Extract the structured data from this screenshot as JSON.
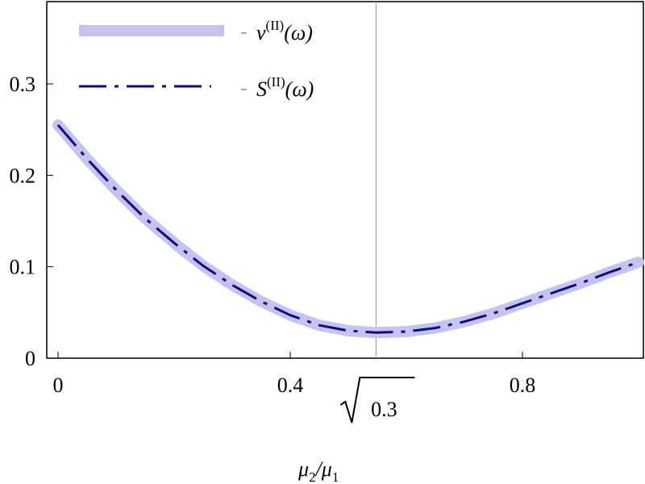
{
  "chart_data": {
    "type": "line",
    "xlabel_main": "μ",
    "xlabel_sub1": "2",
    "xlabel_slash": "/μ",
    "xlabel_sub2": "1",
    "ylabel": "",
    "xlim": [
      0,
      1.0
    ],
    "ylim": [
      0,
      0.39
    ],
    "x_ticks": [
      {
        "value": 0,
        "label": "0"
      },
      {
        "value": 0.4,
        "label": "0.4"
      },
      {
        "value": 0.8,
        "label": "0.8"
      }
    ],
    "y_ticks": [
      {
        "value": 0,
        "label": "0"
      },
      {
        "value": 0.1,
        "label": "0.1"
      },
      {
        "value": 0.2,
        "label": "0.2"
      },
      {
        "value": 0.3,
        "label": "0.3"
      }
    ],
    "vline": {
      "value": 0.5477,
      "label": "0.3",
      "label_prefix": "√"
    },
    "grid": false,
    "legend_position": "top-left",
    "series": [
      {
        "name_main": "ν",
        "name_sup": "(II)",
        "name_tail": "(ω)",
        "style": "thick-light",
        "color": "#c5c4f1",
        "x": [
          0,
          0.05,
          0.1,
          0.15,
          0.2,
          0.25,
          0.3,
          0.35,
          0.4,
          0.45,
          0.5,
          0.5477,
          0.6,
          0.65,
          0.7,
          0.75,
          0.8,
          0.85,
          0.9,
          0.95,
          1.0
        ],
        "y": [
          0.255,
          0.218,
          0.184,
          0.153,
          0.126,
          0.101,
          0.08,
          0.062,
          0.047,
          0.036,
          0.03,
          0.028,
          0.029,
          0.033,
          0.04,
          0.049,
          0.06,
          0.071,
          0.082,
          0.094,
          0.105
        ]
      },
      {
        "name_main": "S",
        "name_sup": "(II)",
        "name_tail": "(ω)",
        "style": "dashed",
        "color": "#0c0c85",
        "x": [
          0,
          0.05,
          0.1,
          0.15,
          0.2,
          0.25,
          0.3,
          0.35,
          0.4,
          0.45,
          0.5,
          0.5477,
          0.6,
          0.65,
          0.7,
          0.75,
          0.8,
          0.85,
          0.9,
          0.95,
          1.0
        ],
        "y": [
          0.255,
          0.218,
          0.184,
          0.153,
          0.126,
          0.101,
          0.08,
          0.062,
          0.047,
          0.036,
          0.03,
          0.028,
          0.029,
          0.033,
          0.04,
          0.049,
          0.06,
          0.071,
          0.082,
          0.094,
          0.105
        ]
      }
    ]
  }
}
